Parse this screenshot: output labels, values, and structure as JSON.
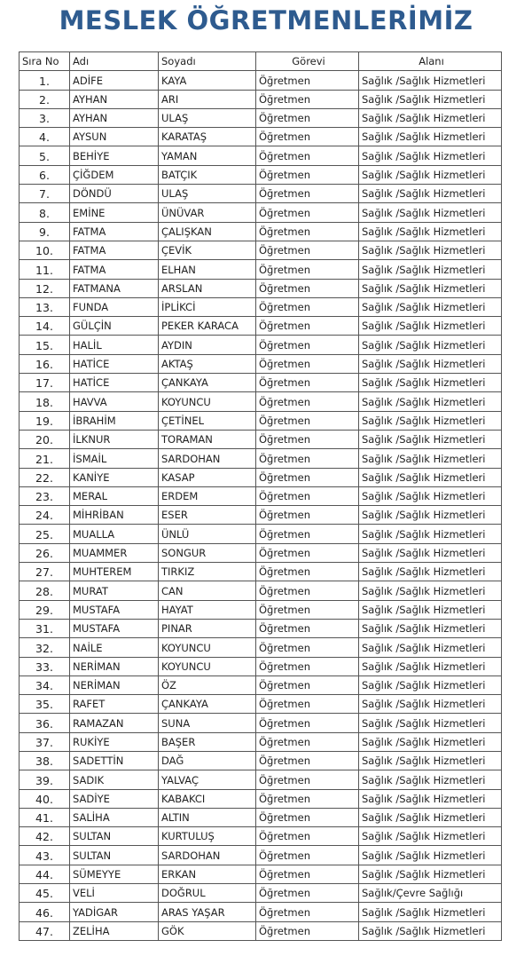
{
  "title": "MESLEK ÖĞRETMENLERİMİZ",
  "headers": [
    "Sıra No",
    "Adı",
    "Soyadı",
    "Görevi",
    "Alanı"
  ],
  "rows": [
    [
      "1.",
      "ADİFE",
      "KAYA",
      "Öğretmen",
      "Sağlık /Sağlık Hizmetleri"
    ],
    [
      "2.",
      "AYHAN",
      "ARI",
      "Öğretmen",
      "Sağlık /Sağlık Hizmetleri"
    ],
    [
      "3.",
      "AYHAN",
      "ULAŞ",
      "Öğretmen",
      "Sağlık /Sağlık Hizmetleri"
    ],
    [
      "4.",
      "AYSUN",
      "KARATAŞ",
      "Öğretmen",
      "Sağlık /Sağlık Hizmetleri"
    ],
    [
      "5.",
      "BEHİYE",
      "YAMAN",
      "Öğretmen",
      "Sağlık /Sağlık Hizmetleri"
    ],
    [
      "6.",
      "ÇİĞDEM",
      "BATÇIK",
      "Öğretmen",
      "Sağlık /Sağlık Hizmetleri"
    ],
    [
      "7.",
      "DÖNDÜ",
      "ULAŞ",
      "Öğretmen",
      "Sağlık /Sağlık Hizmetleri"
    ],
    [
      "8.",
      "EMİNE",
      "ÜNÜVAR",
      "Öğretmen",
      "Sağlık /Sağlık Hizmetleri"
    ],
    [
      "9.",
      "FATMA",
      "ÇALIŞKAN",
      "Öğretmen",
      "Sağlık /Sağlık Hizmetleri"
    ],
    [
      "10.",
      "FATMA",
      "ÇEVİK",
      "Öğretmen",
      "Sağlık /Sağlık Hizmetleri"
    ],
    [
      "11.",
      "FATMA",
      "ELHAN",
      "Öğretmen",
      "Sağlık /Sağlık Hizmetleri"
    ],
    [
      "12.",
      "FATMANA",
      "ARSLAN",
      "Öğretmen",
      "Sağlık /Sağlık Hizmetleri"
    ],
    [
      "13.",
      "FUNDA",
      "İPLİKCİ",
      "Öğretmen",
      "Sağlık /Sağlık Hizmetleri"
    ],
    [
      "14.",
      "GÜLÇİN",
      "PEKER KARACA",
      "Öğretmen",
      "Sağlık /Sağlık Hizmetleri"
    ],
    [
      "15.",
      "HALİL",
      "AYDIN",
      "Öğretmen",
      "Sağlık /Sağlık Hizmetleri"
    ],
    [
      "16.",
      "HATİCE",
      "AKTAŞ",
      "Öğretmen",
      "Sağlık /Sağlık Hizmetleri"
    ],
    [
      "17.",
      "HATİCE",
      "ÇANKAYA",
      "Öğretmen",
      "Sağlık /Sağlık Hizmetleri"
    ],
    [
      "18.",
      "HAVVA",
      "KOYUNCU",
      "Öğretmen",
      "Sağlık /Sağlık Hizmetleri"
    ],
    [
      "19.",
      "İBRAHİM",
      "ÇETİNEL",
      "Öğretmen",
      "Sağlık /Sağlık Hizmetleri"
    ],
    [
      "20.",
      "İLKNUR",
      "TORAMAN",
      "Öğretmen",
      "Sağlık /Sağlık Hizmetleri"
    ],
    [
      "21.",
      "İSMAİL",
      "SARDOHAN",
      "Öğretmen",
      "Sağlık /Sağlık Hizmetleri"
    ],
    [
      "22.",
      "KANİYE",
      "KASAP",
      "Öğretmen",
      "Sağlık /Sağlık Hizmetleri"
    ],
    [
      "23.",
      "MERAL",
      "ERDEM",
      "Öğretmen",
      "Sağlık /Sağlık Hizmetleri"
    ],
    [
      "24.",
      "MİHRİBAN",
      "ESER",
      "Öğretmen",
      "Sağlık /Sağlık Hizmetleri"
    ],
    [
      "25.",
      "MUALLA",
      "ÜNLÜ",
      "Öğretmen",
      "Sağlık /Sağlık Hizmetleri"
    ],
    [
      "26.",
      "MUAMMER",
      "SONGUR",
      "Öğretmen",
      "Sağlık /Sağlık Hizmetleri"
    ],
    [
      "27.",
      "MUHTEREM",
      "TIRKIZ",
      "Öğretmen",
      "Sağlık /Sağlık Hizmetleri"
    ],
    [
      "28.",
      "MURAT",
      "CAN",
      "Öğretmen",
      "Sağlık /Sağlık Hizmetleri"
    ],
    [
      "29.",
      "MUSTAFA",
      "HAYAT",
      "Öğretmen",
      "Sağlık /Sağlık Hizmetleri"
    ],
    [
      "31.",
      "MUSTAFA",
      "PINAR",
      "Öğretmen",
      "Sağlık /Sağlık Hizmetleri"
    ],
    [
      "32.",
      "NAİLE",
      "KOYUNCU",
      "Öğretmen",
      "Sağlık /Sağlık Hizmetleri"
    ],
    [
      "33.",
      "NERİMAN",
      "KOYUNCU",
      "Öğretmen",
      "Sağlık /Sağlık Hizmetleri"
    ],
    [
      "34.",
      "NERİMAN",
      "ÖZ",
      "Öğretmen",
      "Sağlık /Sağlık Hizmetleri"
    ],
    [
      "35.",
      "RAFET",
      "ÇANKAYA",
      "Öğretmen",
      "Sağlık /Sağlık Hizmetleri"
    ],
    [
      "36.",
      "RAMAZAN",
      "SUNA",
      "Öğretmen",
      "Sağlık /Sağlık Hizmetleri"
    ],
    [
      "37.",
      "RUKİYE",
      "BAŞER",
      "Öğretmen",
      "Sağlık /Sağlık Hizmetleri"
    ],
    [
      "38.",
      "SADETTİN",
      "DAĞ",
      "Öğretmen",
      "Sağlık /Sağlık Hizmetleri"
    ],
    [
      "39.",
      "SADIK",
      "YALVAÇ",
      "Öğretmen",
      "Sağlık /Sağlık Hizmetleri"
    ],
    [
      "40.",
      "SADİYE",
      "KABAKCI",
      "Öğretmen",
      "Sağlık /Sağlık Hizmetleri"
    ],
    [
      "41.",
      "SALİHA",
      "ALTIN",
      "Öğretmen",
      "Sağlık /Sağlık Hizmetleri"
    ],
    [
      "42.",
      "SULTAN",
      "KURTULUŞ",
      "Öğretmen",
      "Sağlık /Sağlık Hizmetleri"
    ],
    [
      "43.",
      "SULTAN",
      "SARDOHAN",
      "Öğretmen",
      "Sağlık /Sağlık Hizmetleri"
    ],
    [
      "44.",
      "SÜMEYYE",
      "ERKAN",
      "Öğretmen",
      "Sağlık /Sağlık Hizmetleri"
    ],
    [
      "45.",
      "VELİ",
      "DOĞRUL",
      "Öğretmen",
      "Sağlık/Çevre Sağlığı"
    ],
    [
      "46.",
      "YADİGAR",
      "ARAS YAŞAR",
      "Öğretmen",
      "Sağlık /Sağlık Hizmetleri"
    ],
    [
      "47.",
      "ZELİHA",
      "GÖK",
      "Öğretmen",
      "Sağlık /Sağlık Hizmetleri"
    ]
  ],
  "colors": {
    "title": "#2e5b8f",
    "border": "#555555"
  }
}
